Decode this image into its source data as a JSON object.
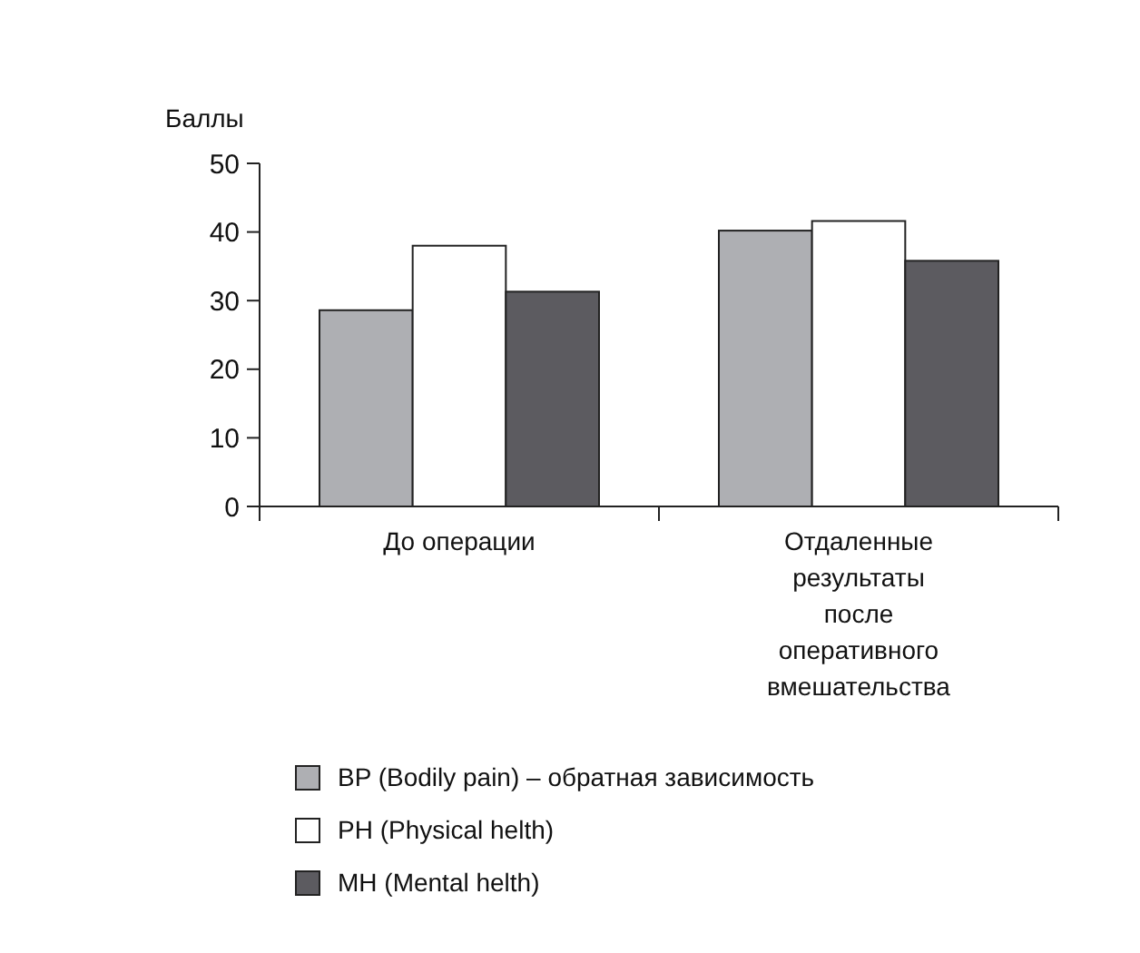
{
  "chart_data": {
    "type": "bar",
    "ylabel": "Баллы",
    "categories": [
      "До операции",
      "Отдаленные результаты после оперативного вмешательства"
    ],
    "series": [
      {
        "name": "BP (Bodily pain) – обратная зависимость",
        "color": "#aeafb3",
        "values": [
          28.6,
          40.2
        ]
      },
      {
        "name": "PH (Physical helth)",
        "color": "#ffffff",
        "values": [
          38.0,
          41.6
        ]
      },
      {
        "name": "MH (Mental helth)",
        "color": "#5c5b60",
        "values": [
          31.3,
          35.8
        ]
      }
    ],
    "ylim": [
      0,
      50
    ],
    "yticks": [
      0,
      10,
      20,
      30,
      40,
      50
    ],
    "grid": false,
    "legend": "bottom"
  }
}
